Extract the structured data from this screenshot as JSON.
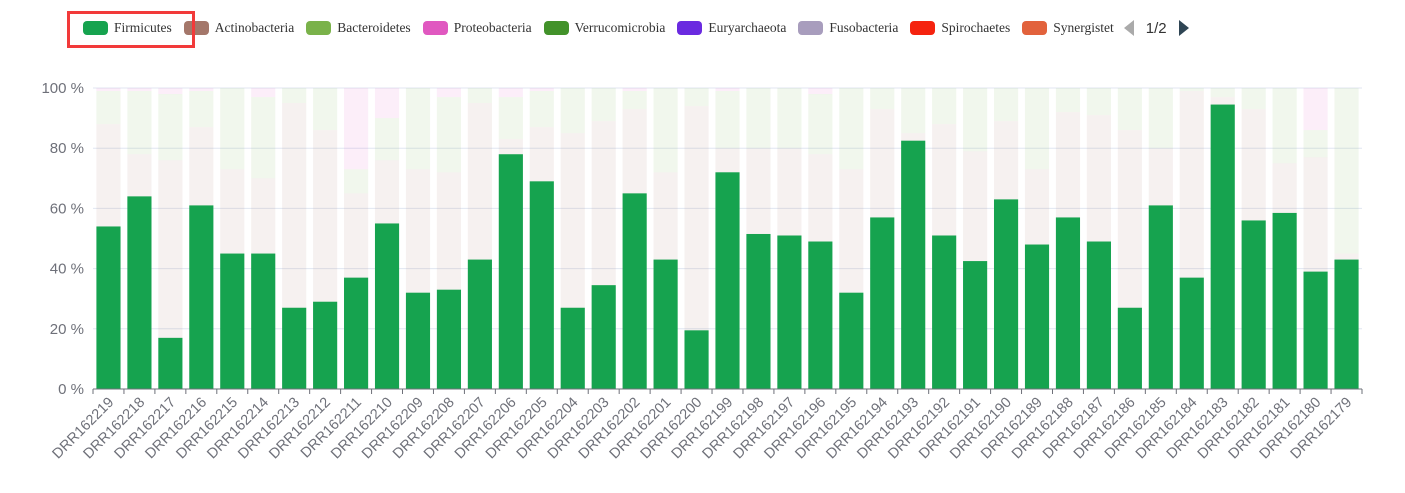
{
  "legend": {
    "items": [
      {
        "name": "Firmicutes",
        "color": "#16a34f"
      },
      {
        "name": "Actinobacteria",
        "color": "#a4776a"
      },
      {
        "name": "Bacteroidetes",
        "color": "#7ab24a"
      },
      {
        "name": "Proteobacteria",
        "color": "#e058c0"
      },
      {
        "name": "Verrucomicrobia",
        "color": "#42922a"
      },
      {
        "name": "Euryarchaeota",
        "color": "#6a2ae0"
      },
      {
        "name": "Fusobacteria",
        "color": "#a89dbd"
      },
      {
        "name": "Spirochaetes",
        "color": "#f5230f"
      },
      {
        "name": "Synergistet",
        "color": "#e2623c"
      }
    ],
    "page": "1/2",
    "highlighted": "Firmicutes"
  },
  "chart_data": {
    "type": "bar",
    "stacked": true,
    "categories": [
      "DRR162219",
      "DRR162218",
      "DRR162217",
      "DRR162216",
      "DRR162215",
      "DRR162214",
      "DRR162213",
      "DRR162212",
      "DRR162211",
      "DRR162210",
      "DRR162209",
      "DRR162208",
      "DRR162207",
      "DRR162206",
      "DRR162205",
      "DRR162204",
      "DRR162203",
      "DRR162202",
      "DRR162201",
      "DRR162200",
      "DRR162199",
      "DRR162198",
      "DRR162197",
      "DRR162196",
      "DRR162195",
      "DRR162194",
      "DRR162193",
      "DRR162192",
      "DRR162191",
      "DRR162190",
      "DRR162189",
      "DRR162188",
      "DRR162187",
      "DRR162186",
      "DRR162185",
      "DRR162184",
      "DRR162183",
      "DRR162182",
      "DRR162181",
      "DRR162180",
      "DRR162179"
    ],
    "series": [
      {
        "name": "Firmicutes",
        "values": [
          54,
          64,
          17,
          61,
          45,
          45,
          27,
          29,
          37,
          55,
          32,
          33,
          43,
          78,
          69,
          27,
          34.5,
          65,
          43,
          19.5,
          72,
          51.5,
          51,
          49,
          32,
          57,
          82.5,
          51,
          42.5,
          63,
          48,
          57,
          49,
          27,
          61,
          37,
          94.5,
          56,
          58.5,
          39,
          43
        ]
      },
      {
        "name": "Actinobacteria",
        "values": [
          34,
          14,
          59,
          26,
          28,
          25,
          68,
          57,
          28,
          21,
          41,
          39,
          52,
          5,
          18,
          58,
          54.5,
          28,
          29,
          74.5,
          8,
          28.5,
          29,
          29,
          41,
          36,
          2.5,
          37,
          36.5,
          26,
          25,
          35,
          42,
          59,
          19,
          62,
          2.5,
          37,
          16.5,
          38,
          2
        ]
      },
      {
        "name": "Bacteroidetes",
        "values": [
          11,
          21,
          22,
          12,
          27,
          27,
          5,
          14,
          8,
          14,
          27,
          25,
          5,
          14,
          12,
          15,
          11,
          6,
          28,
          6,
          19,
          20,
          20,
          20,
          27,
          7,
          15,
          12,
          21,
          11,
          27,
          8,
          9,
          14,
          20,
          1,
          3,
          7,
          25,
          9,
          55
        ]
      },
      {
        "name": "Proteobacteria",
        "values": [
          1,
          1,
          2,
          1,
          0,
          3,
          0,
          0,
          27,
          10,
          0,
          3,
          0,
          3,
          1,
          0,
          0,
          1,
          0,
          0,
          1,
          0,
          0,
          2,
          0,
          0,
          0,
          0,
          0,
          0,
          0,
          0,
          0,
          0,
          0,
          0,
          0,
          0,
          0,
          14,
          0
        ]
      }
    ],
    "yticks": [
      "0 %",
      "20 %",
      "40 %",
      "60 %",
      "80 %",
      "100 %"
    ],
    "ylim": [
      0,
      100
    ],
    "xlabel": "",
    "ylabel": "",
    "grid": true,
    "legend_position": "top"
  }
}
